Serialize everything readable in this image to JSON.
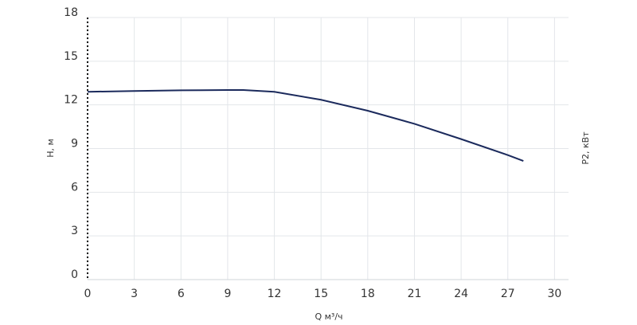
{
  "chart_data": {
    "type": "line",
    "x_label": "Q м³/ч",
    "y_label": "H, м",
    "y2_label": "P2, кВт",
    "series": [
      {
        "name": "H",
        "color": "#1b2a5c",
        "x": [
          0,
          3,
          6,
          9,
          10,
          12,
          15,
          18,
          21,
          24,
          27,
          28
        ],
        "values": [
          12.9,
          12.95,
          13.0,
          13.02,
          13.02,
          12.9,
          12.35,
          11.6,
          10.7,
          9.65,
          8.55,
          8.15
        ]
      }
    ],
    "xlim": [
      0,
      30.9
    ],
    "xticks": [
      0,
      3,
      6,
      9,
      12,
      15,
      18,
      21,
      24,
      27,
      30
    ],
    "ylim": [
      0,
      18
    ],
    "yticks": [
      0,
      3,
      6,
      9,
      12,
      15,
      18
    ],
    "grid": true
  }
}
